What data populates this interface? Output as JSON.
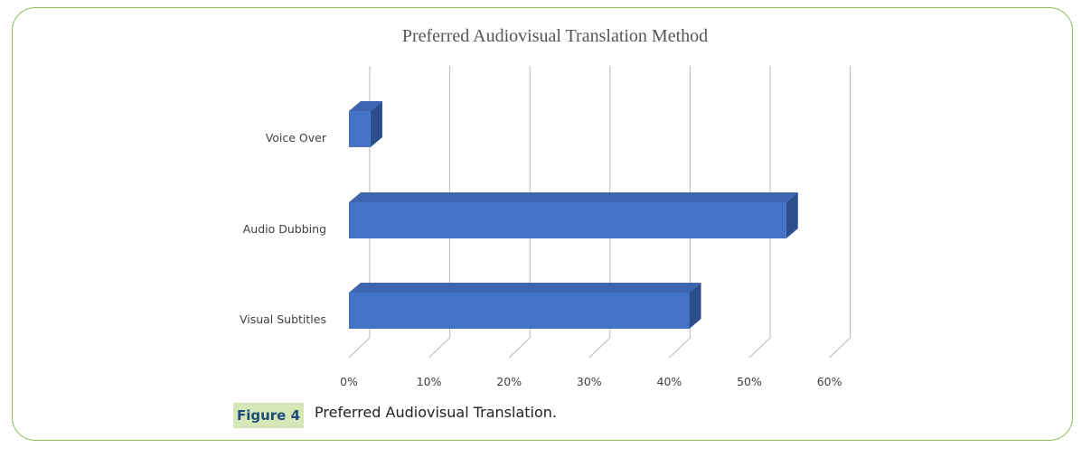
{
  "chart_data": {
    "type": "bar",
    "orientation": "horizontal",
    "style": "3d",
    "title": "Preferred Audiovisual Translation Method",
    "categories": [
      "Voice Over",
      "Audio Dubbing",
      "Visual Subtitles"
    ],
    "values": [
      2.7,
      54.6,
      42.5
    ],
    "xlim": [
      0,
      60
    ],
    "x_ticks": [
      "0%",
      "10%",
      "20%",
      "30%",
      "40%",
      "50%",
      "60%"
    ],
    "tick_values": [
      0,
      10,
      20,
      30,
      40,
      50,
      60
    ],
    "grid": true,
    "legend": "none",
    "colors": {
      "bar_front": "#4472c4",
      "bar_top": "#3d65b0",
      "bar_side": "#2c4f8c",
      "grid": "#b8b8b8"
    }
  },
  "caption": {
    "label": "Figure 4",
    "text": "Preferred Audiovisual Translation."
  }
}
